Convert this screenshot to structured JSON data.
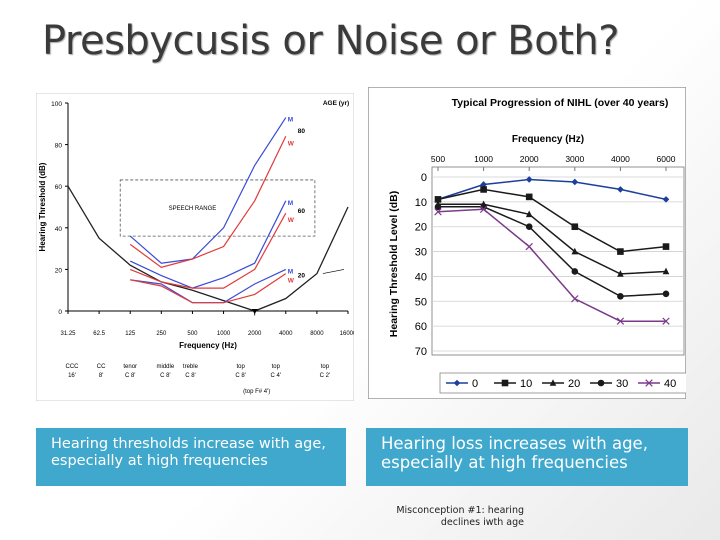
{
  "slide": {
    "title": "Presbycusis or Noise or Both?",
    "caption_left": "Hearing thresholds increase with age, especially at high frequencies",
    "caption_right": "Hearing loss increases with age, especially at high frequencies",
    "note": "Misconception #1: hearing declines iwth age"
  },
  "chart_data": [
    {
      "type": "line",
      "title": "",
      "xlabel": "Frequency (Hz)",
      "ylabel": "Hearing Threshold (dB)",
      "age_label": "AGE (yr)",
      "x_ticks": [
        "31.25",
        "62.5",
        "125",
        "250",
        "500",
        "1000",
        "2000",
        "4000",
        "8000",
        "16000"
      ],
      "y_ticks": [
        "100",
        "80",
        "60",
        "40",
        "20",
        "0"
      ],
      "ylim": [
        0,
        100
      ],
      "speech_range_label": "SPEECH RANGE",
      "threshold_curve": {
        "x": [
          31.25,
          62.5,
          125,
          250,
          500,
          1000,
          2000,
          4000,
          8000,
          16000
        ],
        "y": [
          60,
          35,
          22,
          14,
          10,
          5,
          0,
          6,
          18,
          50
        ]
      },
      "series": [
        {
          "name": "20",
          "men": [
            15,
            13,
            4,
            4,
            13,
            20
          ],
          "women": [
            15,
            12,
            4,
            4,
            8,
            18
          ]
        },
        {
          "name": "60",
          "men": [
            24,
            17,
            11,
            16,
            23,
            53
          ],
          "women": [
            20,
            14,
            11,
            11,
            20,
            47
          ]
        },
        {
          "name": "80",
          "men": [
            36,
            23,
            25,
            40,
            70,
            93
          ],
          "women": [
            32,
            21,
            25,
            31,
            53,
            84
          ]
        }
      ],
      "series_x": [
        125,
        250,
        500,
        1000,
        2000,
        4000
      ],
      "gender_labels": {
        "men": "M",
        "women": "W"
      },
      "notes": [
        {
          "label": "CCC",
          "sub": "16'"
        },
        {
          "label": "CC",
          "sub": "8'"
        },
        {
          "label": "tenor",
          "sub": "C 8'"
        },
        {
          "label": "middle",
          "sub": "C 8'"
        },
        {
          "label": "treble",
          "sub": "C 8'"
        },
        {
          "label": "top",
          "sub": "C 8'"
        },
        {
          "label": "top",
          "sub": "C 4'"
        },
        {
          "label": "top",
          "sub": "C 2'"
        }
      ],
      "top_fsharp": "(top F# 4')"
    },
    {
      "type": "line",
      "title": "Typical Progression of NIHL (over 40 years)",
      "xlabel": "Frequency (Hz)",
      "ylabel": "Hearing Threshold Level (dB)",
      "categories": [
        "500",
        "1000",
        "2000",
        "3000",
        "4000",
        "6000"
      ],
      "y_ticks": [
        "0",
        "10",
        "20",
        "30",
        "40",
        "50",
        "60",
        "70"
      ],
      "ylim": [
        0,
        70
      ],
      "series": [
        {
          "name": "0",
          "marker": "diamond",
          "color": "#1c3f9e",
          "values": [
            9,
            3,
            1,
            2,
            5,
            9
          ]
        },
        {
          "name": "10",
          "marker": "square",
          "color": "#1a1a1a",
          "values": [
            9,
            5,
            8,
            20,
            30,
            28
          ]
        },
        {
          "name": "20",
          "marker": "triangle",
          "color": "#1a1a1a",
          "values": [
            11,
            11,
            15,
            30,
            39,
            38
          ]
        },
        {
          "name": "30",
          "marker": "circle",
          "color": "#1a1a1a",
          "values": [
            12,
            12,
            20,
            38,
            48,
            47
          ]
        },
        {
          "name": "40",
          "marker": "x",
          "color": "#7b3a8a",
          "values": [
            14,
            13,
            28,
            49,
            58,
            58
          ]
        }
      ]
    }
  ]
}
